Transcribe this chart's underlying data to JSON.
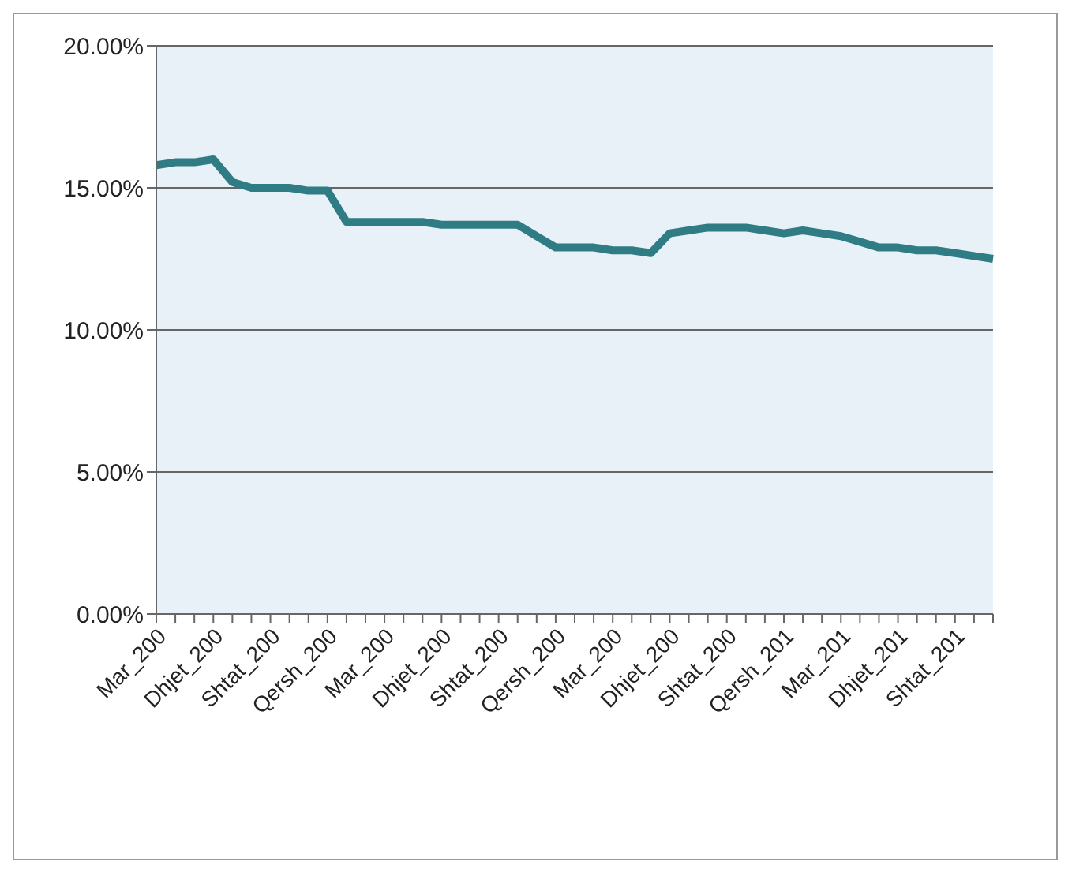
{
  "chart_data": {
    "type": "line",
    "categories": [
      "Mar_200",
      null,
      null,
      "Dhjet_200",
      null,
      null,
      "Shtat_200",
      null,
      null,
      "Qersh_200",
      null,
      null,
      "Mar_200",
      null,
      null,
      "Dhjet_200",
      null,
      null,
      "Shtat_200",
      null,
      null,
      "Qersh_200",
      null,
      null,
      "Mar_200",
      null,
      null,
      "Dhjet_200",
      null,
      null,
      "Shtat_200",
      null,
      null,
      "Qersh_201",
      null,
      null,
      "Mar_201",
      null,
      null,
      "Dhjet_201",
      null,
      null,
      "Shtat_201",
      null,
      null
    ],
    "series": [
      {
        "color": "#2f7c84",
        "values": [
          15.8,
          15.9,
          15.9,
          16.0,
          15.2,
          15.0,
          15.0,
          15.0,
          14.9,
          14.9,
          13.8,
          13.8,
          13.8,
          13.8,
          13.8,
          13.7,
          13.7,
          13.7,
          13.7,
          13.7,
          13.3,
          12.9,
          12.9,
          12.9,
          12.8,
          12.8,
          12.7,
          13.4,
          13.5,
          13.6,
          13.6,
          13.6,
          13.5,
          13.4,
          13.5,
          13.4,
          13.3,
          13.1,
          12.9,
          12.9,
          12.8,
          12.8,
          12.7,
          12.6,
          12.5
        ]
      }
    ],
    "ylim": [
      0,
      20
    ],
    "yticks": [
      {
        "value": 0,
        "label": "0.00%"
      },
      {
        "value": 5,
        "label": "5.00%"
      },
      {
        "value": 10,
        "label": "10.00%"
      },
      {
        "value": 15,
        "label": "15.00%"
      },
      {
        "value": 20,
        "label": "20.00%"
      }
    ],
    "grid": "y",
    "legend": false,
    "marker": "none",
    "line_style": "solid"
  }
}
